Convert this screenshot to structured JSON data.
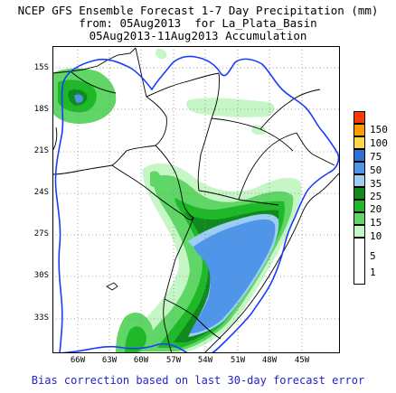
{
  "title": {
    "line1": "NCEP GFS Ensemble Forecast 1-7 Day Precipitation (mm)",
    "line2": "from: 05Aug2013  for La_Plata_Basin",
    "line3": "05Aug2013-11Aug2013 Accumulation"
  },
  "footer": "Bias correction based on last 30-day forecast error",
  "latitude_labels": [
    "15S",
    "18S",
    "21S",
    "24S",
    "27S",
    "30S",
    "33S"
  ],
  "longitude_labels": [
    "66W",
    "63W",
    "60W",
    "57W",
    "54W",
    "51W",
    "48W",
    "45W"
  ],
  "legend": [
    {
      "label": "150",
      "color": "#ff3a00"
    },
    {
      "label": "100",
      "color": "#ff9c00"
    },
    {
      "label": "75",
      "color": "#ffd84a"
    },
    {
      "label": "50",
      "color": "#2e6fd6"
    },
    {
      "label": "35",
      "color": "#4f95ea"
    },
    {
      "label": "25",
      "color": "#9ccdf4"
    },
    {
      "label": "20",
      "color": "#0f8a1e"
    },
    {
      "label": "15",
      "color": "#1fb828"
    },
    {
      "label": "10",
      "color": "#5fd666"
    },
    {
      "label": "5",
      "color": "#c6f5c6"
    },
    {
      "label": "1",
      "color": "#ffffff"
    }
  ],
  "colors": {
    "basin_border": "#1a3cff",
    "country_border": "#000000",
    "light_green": "#c6f5c6",
    "mid_green": "#5fd666",
    "green": "#1fb828",
    "dark_green": "#0f8a1e",
    "light_blue": "#9ccdf4",
    "blue": "#4f95ea"
  }
}
